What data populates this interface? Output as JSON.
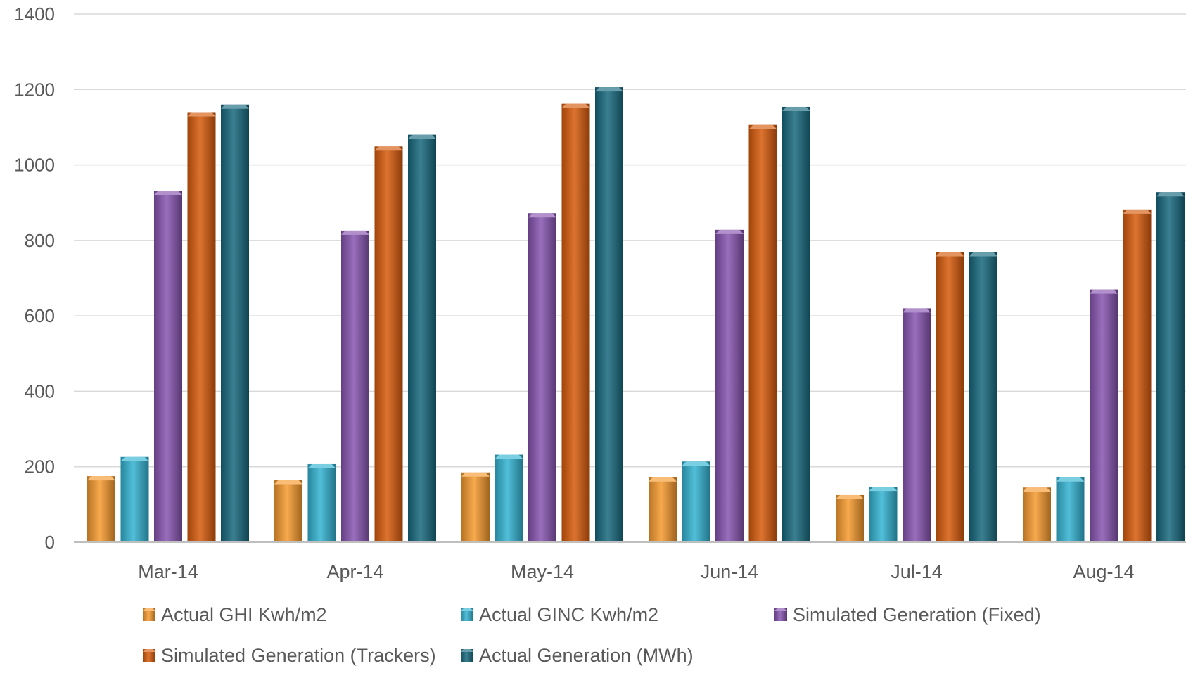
{
  "chart_data": {
    "type": "bar",
    "title": "",
    "xlabel": "",
    "ylabel": "",
    "ylim": [
      0,
      1400
    ],
    "yticks": [
      0,
      200,
      400,
      600,
      800,
      1000,
      1200,
      1400
    ],
    "grid": true,
    "legend_placement": "bottom",
    "categories": [
      "Mar-14",
      "Apr-14",
      "May-14",
      "Jun-14",
      "Jul-14",
      "Aug-14"
    ],
    "series": [
      {
        "name": "Actual GHI Kwh/m2",
        "color": "#f59a2e",
        "values": [
          175,
          165,
          185,
          172,
          125,
          145
        ]
      },
      {
        "name": "Actual GINC Kwh/m2",
        "color": "#33b3d1",
        "values": [
          226,
          207,
          232,
          214,
          147,
          172
        ]
      },
      {
        "name": "Simulated Generation (Fixed)",
        "color": "#8754b0",
        "values": [
          932,
          826,
          872,
          828,
          620,
          670
        ]
      },
      {
        "name": "Simulated Generation (Trackers)",
        "color": "#d65a0c",
        "values": [
          1140,
          1049,
          1162,
          1106,
          769,
          882
        ]
      },
      {
        "name": "Actual Generation (MWh)",
        "color": "#17687e",
        "values": [
          1160,
          1080,
          1206,
          1154,
          769,
          928
        ]
      }
    ]
  }
}
